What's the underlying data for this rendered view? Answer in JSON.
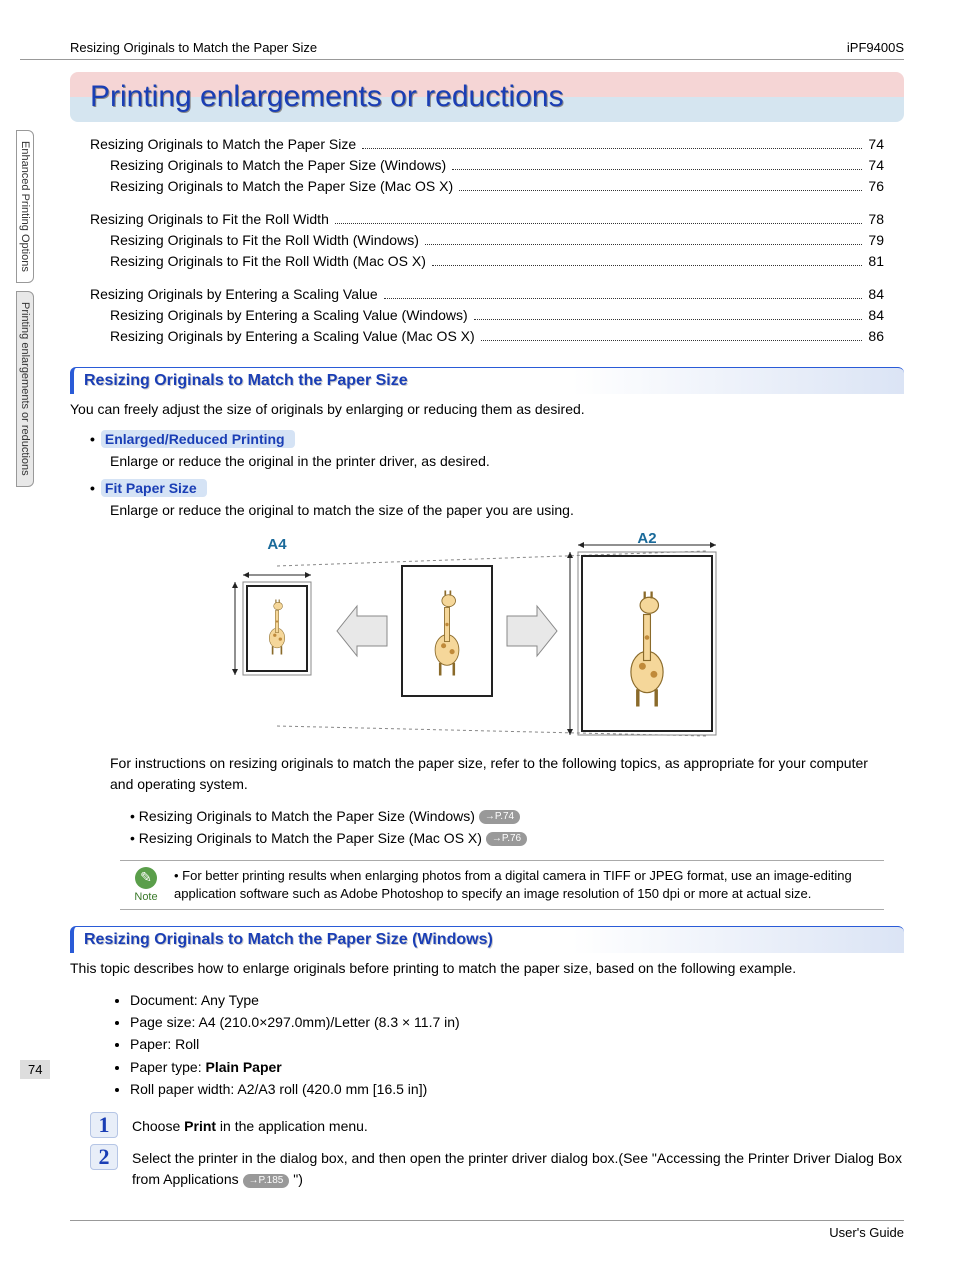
{
  "header": {
    "left": "Resizing Originals to Match the Paper Size",
    "right": "iPF9400S"
  },
  "side_tabs": [
    {
      "label": "Enhanced Printing Options",
      "active": false
    },
    {
      "label": "Printing enlargements or reductions",
      "active": true
    }
  ],
  "title": "Printing enlargements or reductions",
  "toc": [
    {
      "title": "Resizing Originals to Match the Paper Size",
      "page": "74",
      "subs": [
        {
          "title": "Resizing Originals to Match the Paper Size (Windows)",
          "page": "74"
        },
        {
          "title": "Resizing Originals to Match the Paper Size (Mac OS X)",
          "page": "76"
        }
      ]
    },
    {
      "title": "Resizing Originals to Fit the Roll Width",
      "page": "78",
      "subs": [
        {
          "title": "Resizing Originals to Fit the Roll Width (Windows)",
          "page": "79"
        },
        {
          "title": "Resizing Originals to Fit the Roll Width (Mac OS X)",
          "page": "81"
        }
      ]
    },
    {
      "title": "Resizing Originals by Entering a Scaling Value",
      "page": "84",
      "subs": [
        {
          "title": "Resizing Originals by Entering a Scaling Value (Windows)",
          "page": "84"
        },
        {
          "title": "Resizing Originals by Entering a Scaling Value (Mac OS X)",
          "page": "86"
        }
      ]
    }
  ],
  "section1": {
    "heading": "Resizing Originals to Match the Paper Size",
    "intro": "You can freely adjust the size of originals by enlarging or reducing them as desired.",
    "sub1_label": "Enlarged/Reduced Printing",
    "sub1_text": "Enlarge or reduce the original in the printer driver, as desired.",
    "sub2_label": "Fit Paper Size",
    "sub2_text": "Enlarge or reduce the original to match the size of the paper you are using.",
    "diagram": {
      "label_left": "A4",
      "label_right": "A2",
      "colors": {
        "label": "#1a6a9a",
        "guide": "#888",
        "frame": "#222",
        "giraffe_body": "#f5d79a",
        "giraffe_spot": "#c08a3a",
        "arrow_fill": "#e8e8e8",
        "arrow_stroke": "#888"
      }
    },
    "instr": "For instructions on resizing originals to match the paper size, refer to the following topics, as appropriate for your computer and operating system.",
    "links": [
      {
        "text": "Resizing Originals to Match the Paper Size (Windows)",
        "pref": "→P.74"
      },
      {
        "text": "Resizing Originals to Match the Paper Size (Mac OS X)",
        "pref": "→P.76"
      }
    ],
    "note_label": "Note",
    "note_text": "For better printing results when enlarging photos from a digital camera in TIFF or JPEG format, use an image-editing application software such as Adobe Photoshop to specify an image resolution of 150 dpi or more at actual size."
  },
  "section2": {
    "heading": "Resizing Originals to Match the Paper Size (Windows)",
    "intro": "This topic describes how to enlarge originals before printing to match the paper size, based on the following example.",
    "examples": [
      "Document: Any Type",
      "Page size: A4 (210.0×297.0mm)/Letter (8.3 × 11.7 in)",
      "Paper: Roll",
      "Paper type: <b>Plain Paper</b>",
      "Roll paper width: A2/A3 roll (420.0 mm [16.5 in])"
    ],
    "step1_pre": "Choose ",
    "step1_bold": "Print",
    "step1_post": " in the application menu.",
    "step2_pre": "Select the printer in the dialog box, and then open the printer driver dialog box.(See \"Accessing the Printer Driver Dialog Box from Applications ",
    "step2_pref": "→P.185",
    "step2_post": " \")"
  },
  "page_number": "74",
  "footer": "User's Guide"
}
